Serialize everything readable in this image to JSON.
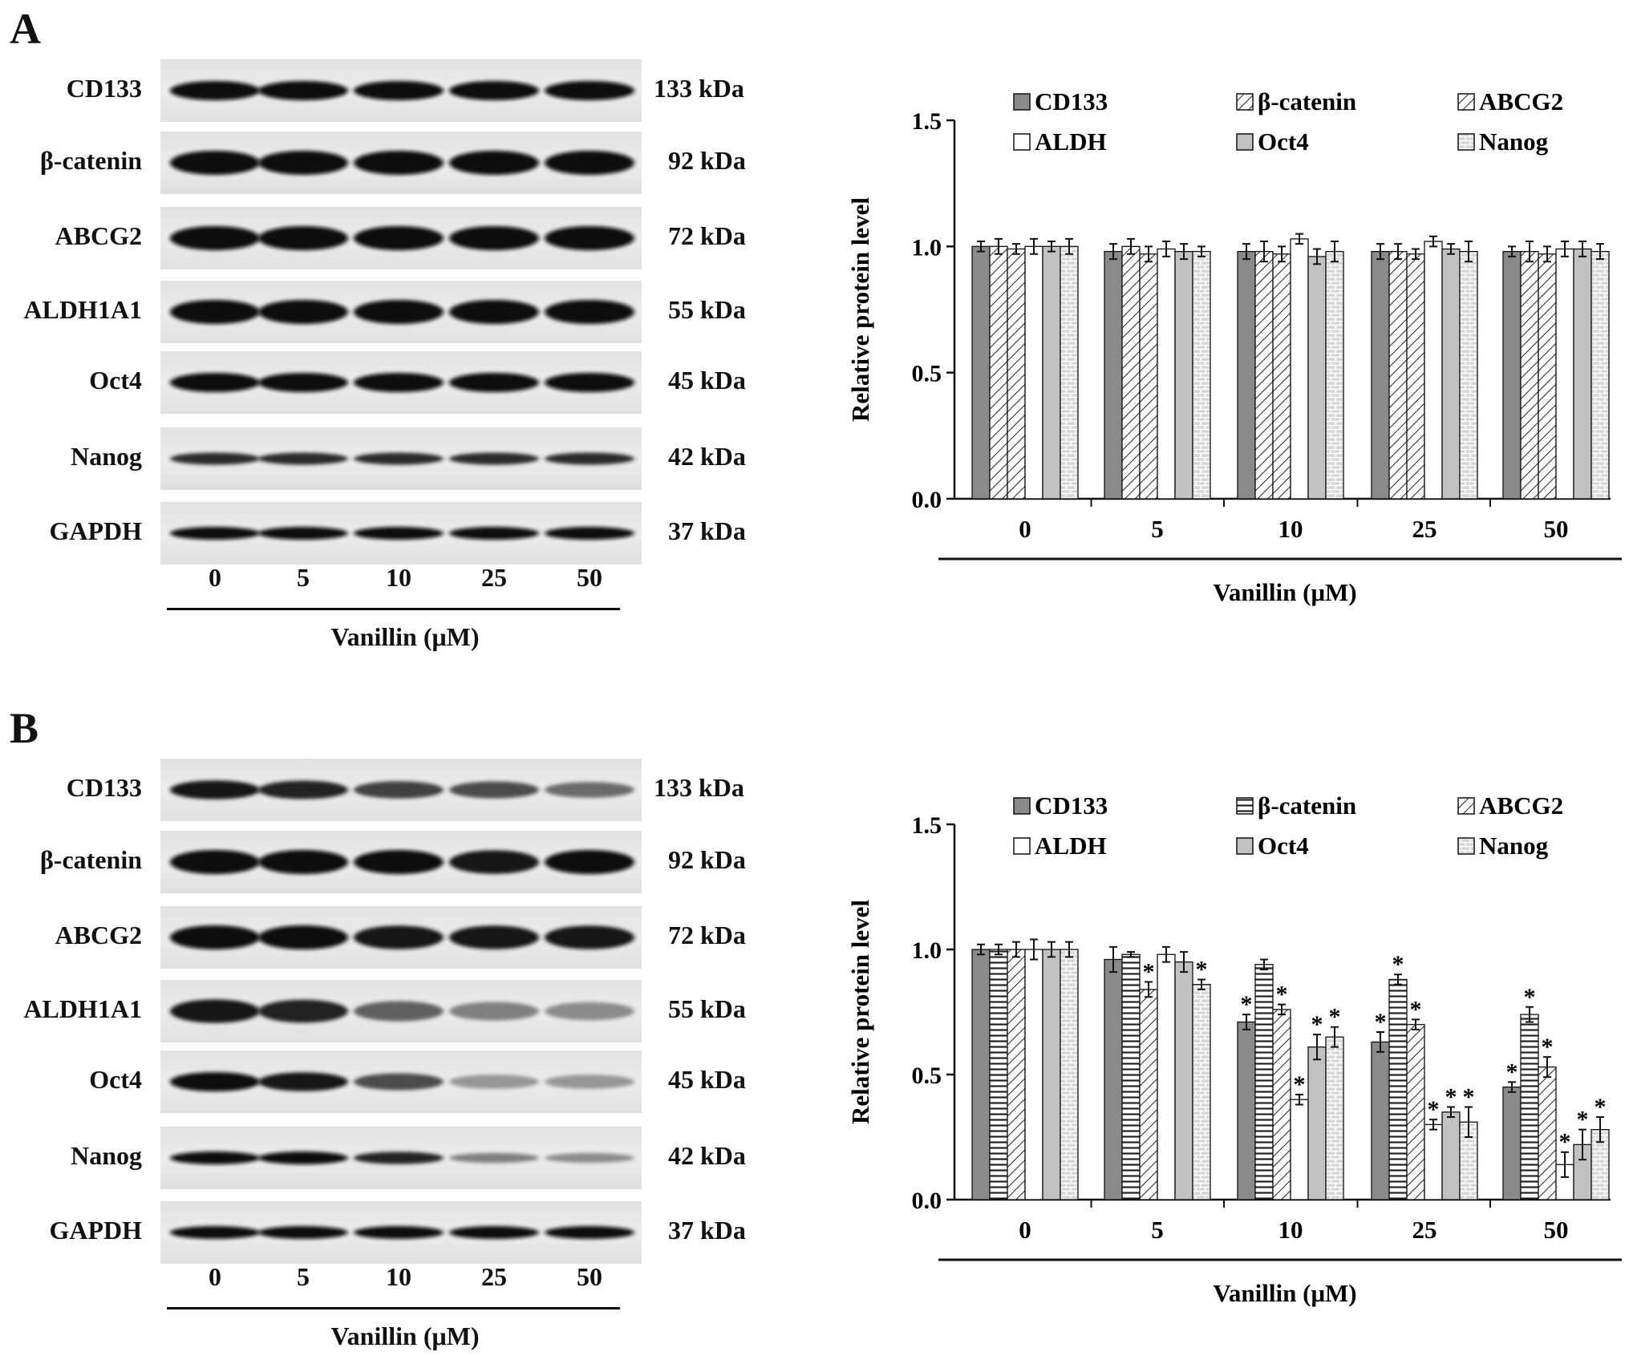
{
  "panels": [
    {
      "letter": "A",
      "blot": {
        "lanes": [
          "0",
          "5",
          "10",
          "25",
          "50"
        ],
        "xlabel": "Vanillin (μM)",
        "proteins": [
          {
            "name": "CD133",
            "kda": "133  kDa",
            "intensity": [
              1,
              1,
              1,
              1,
              1
            ]
          },
          {
            "name": "β-catenin",
            "kda": "92  kDa",
            "intensity": [
              1,
              1,
              1,
              1,
              1
            ]
          },
          {
            "name": "ABCG2",
            "kda": "72  kDa",
            "intensity": [
              1,
              1,
              1,
              1,
              1
            ]
          },
          {
            "name": "ALDH1A1",
            "kda": "55  kDa",
            "intensity": [
              1,
              1,
              1,
              1,
              1
            ]
          },
          {
            "name": "Oct4",
            "kda": "45  kDa",
            "intensity": [
              1,
              1,
              1,
              1,
              1
            ]
          },
          {
            "name": "Nanog",
            "kda": "42  kDa",
            "intensity": [
              0.85,
              0.85,
              0.85,
              0.85,
              0.85
            ]
          },
          {
            "name": "GAPDH",
            "kda": "37  kDa",
            "intensity": [
              1,
              1,
              1,
              1,
              1
            ]
          }
        ]
      },
      "chart_data": {
        "type": "bar",
        "categories": [
          "0",
          "5",
          "10",
          "25",
          "50"
        ],
        "xlabel": "Vanillin (μM)",
        "ylabel": "Relative protein level",
        "ylim": [
          0,
          1.5
        ],
        "yticks": [
          "0.0",
          "0.5",
          "1.0",
          "1.5"
        ],
        "legend_position": "top",
        "series": [
          {
            "name": "CD133",
            "pattern": "solid",
            "values": [
              1.0,
              0.98,
              0.98,
              0.98,
              0.98
            ],
            "err": [
              0.02,
              0.03,
              0.03,
              0.03,
              0.02
            ],
            "sig": [
              false,
              false,
              false,
              false,
              false
            ]
          },
          {
            "name": "β-catenin",
            "pattern": "diag",
            "values": [
              1.0,
              1.0,
              0.98,
              0.98,
              0.98
            ],
            "err": [
              0.03,
              0.03,
              0.04,
              0.03,
              0.04
            ],
            "sig": [
              false,
              false,
              false,
              false,
              false
            ]
          },
          {
            "name": "ABCG2",
            "pattern": "diag",
            "values": [
              0.99,
              0.97,
              0.97,
              0.97,
              0.97
            ],
            "err": [
              0.02,
              0.03,
              0.03,
              0.02,
              0.03
            ],
            "sig": [
              false,
              false,
              false,
              false,
              false
            ]
          },
          {
            "name": "ALDH",
            "pattern": "white",
            "values": [
              1.0,
              0.99,
              1.03,
              1.02,
              0.99
            ],
            "err": [
              0.03,
              0.03,
              0.02,
              0.02,
              0.03
            ],
            "sig": [
              false,
              false,
              false,
              false,
              false
            ]
          },
          {
            "name": "Oct4",
            "pattern": "gray",
            "values": [
              1.0,
              0.98,
              0.96,
              0.99,
              0.99
            ],
            "err": [
              0.02,
              0.03,
              0.03,
              0.02,
              0.03
            ],
            "sig": [
              false,
              false,
              false,
              false,
              false
            ]
          },
          {
            "name": "Nanog",
            "pattern": "brick",
            "values": [
              1.0,
              0.98,
              0.98,
              0.98,
              0.98
            ],
            "err": [
              0.03,
              0.02,
              0.04,
              0.04,
              0.03
            ],
            "sig": [
              false,
              false,
              false,
              false,
              false
            ]
          }
        ]
      }
    },
    {
      "letter": "B",
      "blot": {
        "lanes": [
          "0",
          "5",
          "10",
          "25",
          "50"
        ],
        "xlabel": "Vanillin (μM)",
        "proteins": [
          {
            "name": "CD133",
            "kda": "133  kDa",
            "intensity": [
              0.95,
              0.9,
              0.75,
              0.7,
              0.55
            ]
          },
          {
            "name": "β-catenin",
            "kda": "92  kDa",
            "intensity": [
              1,
              1,
              1,
              0.95,
              1
            ]
          },
          {
            "name": "ABCG2",
            "kda": "72  kDa",
            "intensity": [
              1,
              1,
              0.95,
              0.95,
              0.95
            ]
          },
          {
            "name": "ALDH1A1",
            "kda": "55  kDa",
            "intensity": [
              0.95,
              0.9,
              0.6,
              0.45,
              0.4
            ]
          },
          {
            "name": "Oct4",
            "kda": "45  kDa",
            "intensity": [
              1,
              0.95,
              0.7,
              0.35,
              0.35
            ]
          },
          {
            "name": "Nanog",
            "kda": "42  kDa",
            "intensity": [
              1,
              1,
              0.9,
              0.45,
              0.4
            ]
          },
          {
            "name": "GAPDH",
            "kda": "37  kDa",
            "intensity": [
              1,
              1,
              1,
              1,
              1
            ]
          }
        ]
      },
      "chart_data": {
        "type": "bar",
        "categories": [
          "0",
          "5",
          "10",
          "25",
          "50"
        ],
        "xlabel": "Vanillin (μM)",
        "ylabel": "Relative protein level",
        "ylim": [
          0,
          1.5
        ],
        "yticks": [
          "0.0",
          "0.5",
          "1.0",
          "1.5"
        ],
        "legend_position": "top",
        "sig_mark": "*",
        "series": [
          {
            "name": "CD133",
            "pattern": "solid",
            "values": [
              1.0,
              0.96,
              0.71,
              0.63,
              0.45
            ],
            "err": [
              0.02,
              0.05,
              0.03,
              0.04,
              0.02
            ],
            "sig": [
              false,
              false,
              true,
              true,
              true
            ]
          },
          {
            "name": "β-catenin",
            "pattern": "hlines",
            "values": [
              1.0,
              0.98,
              0.94,
              0.88,
              0.74
            ],
            "err": [
              0.02,
              0.01,
              0.02,
              0.02,
              0.03
            ],
            "sig": [
              false,
              false,
              false,
              true,
              true
            ]
          },
          {
            "name": "ABCG2",
            "pattern": "diag",
            "values": [
              1.0,
              0.84,
              0.76,
              0.7,
              0.53
            ],
            "err": [
              0.03,
              0.03,
              0.02,
              0.02,
              0.04
            ],
            "sig": [
              false,
              true,
              true,
              true,
              true
            ]
          },
          {
            "name": "ALDH",
            "pattern": "white",
            "values": [
              1.0,
              0.98,
              0.4,
              0.3,
              0.14
            ],
            "err": [
              0.04,
              0.03,
              0.02,
              0.02,
              0.05
            ],
            "sig": [
              false,
              false,
              true,
              true,
              true
            ]
          },
          {
            "name": "Oct4",
            "pattern": "gray",
            "values": [
              1.0,
              0.95,
              0.61,
              0.35,
              0.22
            ],
            "err": [
              0.03,
              0.04,
              0.05,
              0.02,
              0.06
            ],
            "sig": [
              false,
              false,
              true,
              true,
              true
            ]
          },
          {
            "name": "Nanog",
            "pattern": "brick",
            "values": [
              1.0,
              0.86,
              0.65,
              0.31,
              0.28
            ],
            "err": [
              0.03,
              0.02,
              0.04,
              0.06,
              0.05
            ],
            "sig": [
              false,
              true,
              true,
              true,
              true
            ]
          }
        ]
      }
    }
  ]
}
